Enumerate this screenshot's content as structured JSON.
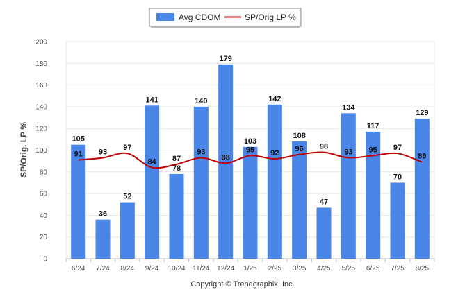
{
  "chart_data": {
    "type": "bar",
    "categories": [
      "6/24",
      "7/24",
      "8/24",
      "9/24",
      "10/24",
      "11/24",
      "12/24",
      "1/25",
      "2/25",
      "3/25",
      "4/25",
      "5/25",
      "6/25",
      "7/25",
      "8/25"
    ],
    "series": [
      {
        "name": "Avg CDOM",
        "type": "bar",
        "color": "#4a86e8",
        "values": [
          105,
          36,
          52,
          141,
          78,
          140,
          179,
          103,
          142,
          108,
          47,
          134,
          117,
          70,
          129
        ]
      },
      {
        "name": "SP/Orig LP %",
        "type": "line",
        "color": "#c00000",
        "values": [
          91,
          93,
          97,
          84,
          87,
          93,
          88,
          95,
          92,
          96,
          98,
          93,
          95,
          97,
          89
        ]
      }
    ],
    "ylabel": "SP/Orig. LP %",
    "ylim": [
      0,
      200
    ],
    "yticks": [
      0,
      20,
      40,
      60,
      80,
      100,
      120,
      140,
      160,
      180,
      200
    ],
    "grid": true,
    "legend_position": "top-center"
  },
  "footer": {
    "copyright": "Copyright © Trendgraphix, Inc."
  }
}
